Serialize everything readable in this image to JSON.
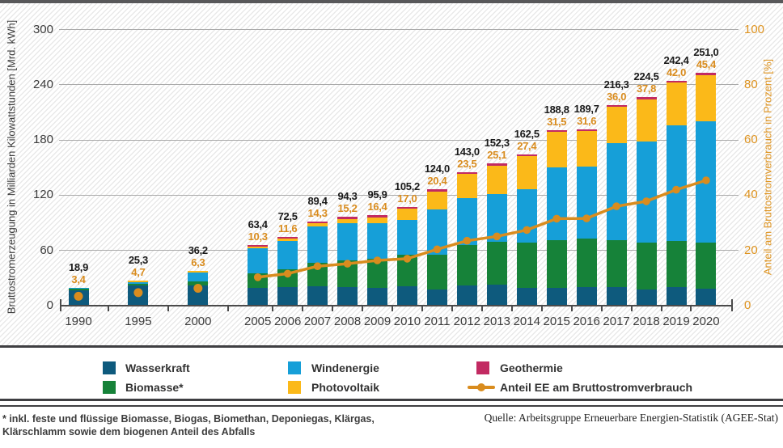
{
  "colors": {
    "wasserkraft": "#0E5A7D",
    "biomasse": "#168239",
    "windenergie": "#169FD8",
    "photovoltaik": "#FBB919",
    "geothermie": "#C22A62",
    "line_orange": "#D98C1E",
    "axis_orange": "#DE931F",
    "text_dark": "#3C3C3C",
    "grid_gray": "#AAAAAA"
  },
  "chart_data": {
    "type": "bar",
    "subtype": "stacked-bar-with-line",
    "title": "",
    "categories": [
      "1990",
      "1995",
      "2000",
      "2005",
      "2006",
      "2007",
      "2008",
      "2009",
      "2010",
      "2011",
      "2012",
      "2013",
      "2014",
      "2015",
      "2016",
      "2017",
      "2018",
      "2019",
      "2020"
    ],
    "series": [
      {
        "name": "Wasserkraft",
        "color": "#0E5A7D",
        "values": [
          17.0,
          21.6,
          21.7,
          19.6,
          20.0,
          21.2,
          20.4,
          19.0,
          21.0,
          17.7,
          22.1,
          23.0,
          19.6,
          19.0,
          20.5,
          20.2,
          18.0,
          20.2,
          18.7
        ]
      },
      {
        "name": "Biomasse*",
        "color": "#168239",
        "values": [
          1.8,
          2.2,
          4.9,
          15.3,
          19.6,
          25.4,
          28.9,
          31.7,
          34.7,
          37.8,
          43.8,
          46.5,
          49.3,
          51.8,
          52.3,
          50.8,
          50.7,
          49.7,
          49.7
        ]
      },
      {
        "name": "Windenergie",
        "color": "#169FD8",
        "values": [
          0.1,
          1.5,
          9.5,
          27.2,
          30.7,
          39.7,
          40.6,
          38.6,
          37.8,
          48.9,
          50.7,
          51.7,
          57.4,
          79.2,
          78.6,
          105.7,
          109.9,
          125.9,
          131.8
        ]
      },
      {
        "name": "Photovoltaik",
        "color": "#FBB919",
        "values": [
          0.0,
          0.01,
          0.06,
          1.3,
          2.2,
          3.1,
          4.4,
          6.6,
          11.7,
          19.6,
          26.4,
          31.0,
          36.1,
          38.7,
          38.1,
          39.4,
          45.7,
          46.4,
          50.6
        ]
      },
      {
        "name": "Geothermie",
        "color": "#C22A62",
        "values": [
          0,
          0,
          0,
          0.0002,
          0.0004,
          0.0004,
          0.02,
          0.02,
          0.03,
          0.02,
          0.03,
          0.08,
          0.1,
          0.13,
          0.17,
          0.16,
          0.16,
          0.17,
          0.17
        ]
      }
    ],
    "totals": [
      18.9,
      25.3,
      36.2,
      63.4,
      72.5,
      89.4,
      94.3,
      95.9,
      105.2,
      124.0,
      143.0,
      152.3,
      162.5,
      188.8,
      189.7,
      216.3,
      224.5,
      242.4,
      251.0
    ],
    "total_labels": [
      "18,9",
      "25,3",
      "36,2",
      "63,4",
      "72,5",
      "89,4",
      "94,3",
      "95,9",
      "105,2",
      "124,0",
      "143,0",
      "152,3",
      "162,5",
      "188,8",
      "189,7",
      "216,3",
      "224,5",
      "242,4",
      "251,0"
    ],
    "line_series": {
      "name": "Anteil EE am Bruttostromverbrauch",
      "color": "#D98C1E",
      "values": [
        3.4,
        4.7,
        6.3,
        10.3,
        11.6,
        14.3,
        15.2,
        16.4,
        17.0,
        20.4,
        23.5,
        25.1,
        27.4,
        31.5,
        31.6,
        36.0,
        37.8,
        42.0,
        45.4
      ],
      "labels": [
        "3,4",
        "4,7",
        "6,3",
        "10,3",
        "11,6",
        "14,3",
        "15,2",
        "16,4",
        "17,0",
        "20,4",
        "23,5",
        "25,1",
        "27,4",
        "31,5",
        "31,6",
        "36,0",
        "37,8",
        "42,0",
        "45,4"
      ],
      "connected_from_category": "2005"
    },
    "y_axis_left": {
      "label": "Bruttostromerzeugung in Milliarden Kilowattstunden [Mrd. kWh]",
      "ticks": [
        0,
        60,
        120,
        180,
        240,
        300
      ],
      "range": [
        0,
        300
      ]
    },
    "y_axis_right": {
      "label": "Anteil am Bruttostromverbrauch in Prozent [%]",
      "ticks": [
        0,
        20,
        40,
        60,
        80,
        100
      ],
      "range": [
        0,
        100
      ]
    },
    "grid": true,
    "legend_position": "bottom"
  },
  "legend": {
    "items": [
      {
        "label": "Wasserkraft",
        "color": "#0E5A7D",
        "type": "swatch"
      },
      {
        "label": "Biomasse*",
        "color": "#168239",
        "type": "swatch"
      },
      {
        "label": "Windenergie",
        "color": "#169FD8",
        "type": "swatch"
      },
      {
        "label": "Photovoltaik",
        "color": "#FBB919",
        "type": "swatch"
      },
      {
        "label": "Geothermie",
        "color": "#C22A62",
        "type": "swatch"
      },
      {
        "label": "Anteil EE am Bruttostromverbrauch",
        "color": "#D98C1E",
        "type": "line"
      }
    ]
  },
  "footnote": {
    "line1": "*  inkl. feste und flüssige Biomasse, Biogas, Biomethan, Deponiegas, Klärgas,",
    "line2": "Klärschlamm sowie dem biogenen Anteil des Abfalls"
  },
  "source": "Quelle: Arbeitsgruppe Erneuerbare Energien-Statistik (AGEE-Stat)"
}
